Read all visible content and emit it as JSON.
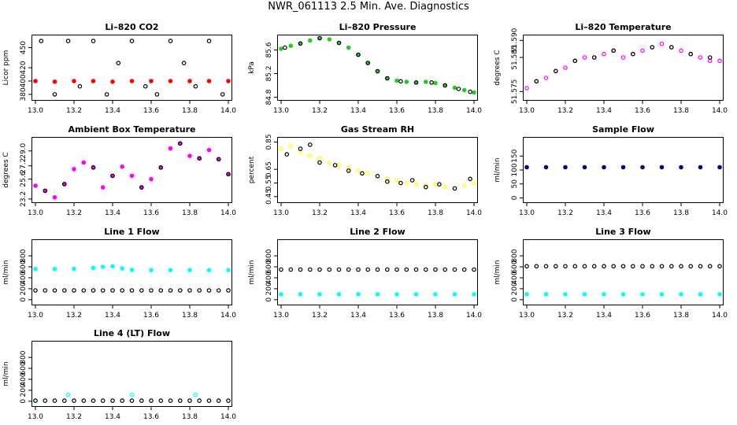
{
  "page_title": "NWR_061113  2.5 Min. Ave. Diagnostics",
  "x_axis": {
    "range": [
      13.0,
      14.0
    ],
    "ticks": [
      "13.0",
      "13.2",
      "13.4",
      "13.6",
      "13.8",
      "14.0"
    ]
  },
  "colors": {
    "black": "#000000",
    "red": "#ff0000",
    "green": "#22cc22",
    "magenta": "#ff00ff",
    "yellow": "#ffff00",
    "cyan": "#00ffff",
    "navy": "#000080"
  },
  "chart_data": [
    {
      "id": "li820-co2",
      "type": "scatter",
      "title": "Li–820 CO2",
      "ylabel": "Licor ppm",
      "ylim": [
        374,
        466
      ],
      "yticks": [
        "380",
        "400",
        "420",
        "450"
      ],
      "series": [
        {
          "name": "co2",
          "color": "red",
          "hollow": false,
          "x": [
            13.0,
            13.1,
            13.2,
            13.3,
            13.4,
            13.5,
            13.6,
            13.7,
            13.8,
            13.9,
            14.0
          ],
          "y": [
            400,
            399,
            400,
            400,
            399,
            400,
            400,
            400,
            400,
            400,
            400
          ]
        },
        {
          "name": "reference",
          "color": "black",
          "hollow": true,
          "x": [
            13.03,
            13.1,
            13.17,
            13.23,
            13.3,
            13.37,
            13.43,
            13.5,
            13.57,
            13.63,
            13.7,
            13.77,
            13.83,
            13.9,
            13.97
          ],
          "y": [
            460,
            380,
            460,
            392,
            460,
            380,
            427,
            460,
            392,
            380,
            460,
            427,
            392,
            460,
            380
          ]
        }
      ]
    },
    {
      "id": "li820-pressure",
      "type": "scatter",
      "title": "Li–820 Pressure",
      "ylabel": "kPa",
      "ylim": [
        84.78,
        85.82
      ],
      "yticks": [
        "84.8",
        "85.2",
        "85.6"
      ],
      "series": [
        {
          "name": "pressure",
          "color": "green",
          "hollow": false,
          "x": [
            13.0,
            13.05,
            13.1,
            13.15,
            13.2,
            13.25,
            13.3,
            13.35,
            13.4,
            13.45,
            13.5,
            13.55,
            13.6,
            13.65,
            13.7,
            13.75,
            13.8,
            13.85,
            13.9,
            13.95,
            14.0
          ],
          "y": [
            85.62,
            85.67,
            85.71,
            85.76,
            85.8,
            85.78,
            85.72,
            85.64,
            85.52,
            85.38,
            85.24,
            85.12,
            85.08,
            85.06,
            85.05,
            85.06,
            85.04,
            85.0,
            84.96,
            84.92,
            84.88
          ]
        },
        {
          "name": "pressure-ref",
          "color": "black",
          "hollow": true,
          "x": [
            13.02,
            13.1,
            13.2,
            13.3,
            13.4,
            13.45,
            13.5,
            13.55,
            13.62,
            13.7,
            13.78,
            13.85,
            13.92,
            13.98
          ],
          "y": [
            85.64,
            85.71,
            85.8,
            85.72,
            85.52,
            85.38,
            85.24,
            85.12,
            85.07,
            85.05,
            85.05,
            85.0,
            84.94,
            84.89
          ]
        }
      ]
    },
    {
      "id": "li820-temperature",
      "type": "scatter",
      "title": "Li–820 Temperature",
      "ylabel": "degrees C",
      "ylim": [
        51.573,
        51.591
      ],
      "yticks": [
        "51.575",
        "51.585",
        "51.590"
      ],
      "series": [
        {
          "name": "temperature",
          "color": "magenta",
          "hollow": true,
          "x": [
            13.0,
            13.05,
            13.1,
            13.15,
            13.2,
            13.25,
            13.3,
            13.35,
            13.4,
            13.45,
            13.5,
            13.55,
            13.6,
            13.65,
            13.7,
            13.75,
            13.8,
            13.85,
            13.9,
            13.95,
            14.0
          ],
          "y": [
            51.576,
            51.578,
            51.579,
            51.581,
            51.582,
            51.584,
            51.585,
            51.585,
            51.586,
            51.587,
            51.585,
            51.586,
            51.587,
            51.588,
            51.589,
            51.588,
            51.587,
            51.586,
            51.585,
            51.584,
            51.584
          ]
        },
        {
          "name": "temperature-ref",
          "color": "black",
          "hollow": true,
          "x": [
            13.05,
            13.15,
            13.25,
            13.35,
            13.45,
            13.55,
            13.65,
            13.75,
            13.85,
            13.95
          ],
          "y": [
            51.578,
            51.581,
            51.584,
            51.585,
            51.587,
            51.586,
            51.588,
            51.588,
            51.586,
            51.585
          ]
        }
      ]
    },
    {
      "id": "ambient-box-temperature",
      "type": "scatter",
      "title": "Ambient Box Temperature",
      "ylabel": "degrees C",
      "ylim": [
        23.0,
        30.4
      ],
      "yticks": [
        "23.2",
        "25.6",
        "27.2",
        "29.0"
      ],
      "series": [
        {
          "name": "box-temp",
          "color": "magenta",
          "hollow": false,
          "x": [
            13.0,
            13.05,
            13.1,
            13.15,
            13.2,
            13.25,
            13.3,
            13.35,
            13.4,
            13.45,
            13.5,
            13.55,
            13.6,
            13.65,
            13.7,
            13.75,
            13.8,
            13.85,
            13.9,
            13.95,
            14.0
          ],
          "y": [
            24.8,
            24.2,
            23.4,
            25.0,
            26.8,
            27.6,
            27.0,
            24.6,
            26.0,
            27.1,
            26.0,
            24.6,
            25.6,
            27.0,
            29.3,
            29.9,
            28.4,
            28.1,
            29.1,
            28.0,
            26.2
          ]
        },
        {
          "name": "box-temp-ref",
          "color": "black",
          "hollow": true,
          "x": [
            13.05,
            13.15,
            13.3,
            13.4,
            13.55,
            13.65,
            13.75,
            13.85,
            13.95,
            14.0
          ],
          "y": [
            24.2,
            25.0,
            27.0,
            26.0,
            24.6,
            27.0,
            29.9,
            28.1,
            28.0,
            26.2
          ]
        }
      ]
    },
    {
      "id": "gas-stream-rh",
      "type": "scatter",
      "title": "Gas Stream RH",
      "ylabel": "percent",
      "ylim": [
        0.42,
        0.87
      ],
      "yticks": [
        "0.45",
        "0.55",
        "0.65",
        "0.85"
      ],
      "series": [
        {
          "name": "rh",
          "color": "yellow",
          "hollow": true,
          "x": [
            13.0,
            13.05,
            13.1,
            13.15,
            13.2,
            13.25,
            13.3,
            13.35,
            13.4,
            13.45,
            13.5,
            13.55,
            13.6,
            13.65,
            13.7,
            13.75,
            13.8,
            13.85,
            13.9,
            13.95,
            14.0
          ],
          "y": [
            0.8,
            0.82,
            0.78,
            0.75,
            0.73,
            0.7,
            0.68,
            0.66,
            0.64,
            0.62,
            0.6,
            0.58,
            0.57,
            0.55,
            0.54,
            0.53,
            0.54,
            0.52,
            0.51,
            0.53,
            0.55
          ]
        },
        {
          "name": "rh-ref",
          "color": "black",
          "hollow": true,
          "x": [
            13.03,
            13.1,
            13.15,
            13.2,
            13.28,
            13.35,
            13.42,
            13.5,
            13.55,
            13.62,
            13.68,
            13.75,
            13.82,
            13.9,
            13.98
          ],
          "y": [
            0.76,
            0.8,
            0.83,
            0.7,
            0.68,
            0.64,
            0.62,
            0.6,
            0.56,
            0.55,
            0.57,
            0.52,
            0.54,
            0.51,
            0.58
          ]
        }
      ]
    },
    {
      "id": "sample-flow",
      "type": "scatter",
      "title": "Sample Flow",
      "ylabel": "ml/min",
      "ylim": [
        -10,
        210
      ],
      "yticks": [
        "0",
        "50",
        "100",
        "150"
      ],
      "series": [
        {
          "name": "sample",
          "color": "navy",
          "hollow": false,
          "x": [
            13.0,
            13.1,
            13.2,
            13.3,
            13.4,
            13.5,
            13.6,
            13.7,
            13.8,
            13.9,
            14.0
          ],
          "y": [
            110,
            110,
            110,
            110,
            110,
            110,
            110,
            110,
            110,
            110,
            110
          ]
        }
      ]
    },
    {
      "id": "line1-flow",
      "type": "scatter",
      "title": "Line 1 Flow",
      "ylabel": "ml/min",
      "ylim": [
        -60,
        1060
      ],
      "yticks": [
        "0",
        "200",
        "400",
        "600",
        "800"
      ],
      "series": [
        {
          "name": "line1",
          "color": "cyan",
          "hollow": false,
          "x": [
            13.0,
            13.1,
            13.2,
            13.3,
            13.35,
            13.4,
            13.45,
            13.5,
            13.6,
            13.7,
            13.8,
            13.9,
            14.0
          ],
          "y": [
            560,
            560,
            565,
            580,
            600,
            610,
            570,
            545,
            540,
            540,
            540,
            540,
            540
          ]
        },
        {
          "name": "line1-ref",
          "color": "black",
          "hollow": true,
          "x": [
            13.0,
            13.05,
            13.1,
            13.15,
            13.2,
            13.25,
            13.3,
            13.35,
            13.4,
            13.45,
            13.5,
            13.55,
            13.6,
            13.65,
            13.7,
            13.75,
            13.8,
            13.85,
            13.9,
            13.95,
            14.0
          ],
          "y": [
            170,
            170,
            170,
            170,
            170,
            170,
            170,
            170,
            170,
            170,
            170,
            170,
            170,
            170,
            170,
            170,
            170,
            170,
            170,
            170,
            170
          ]
        }
      ]
    },
    {
      "id": "line2-flow",
      "type": "scatter",
      "title": "Line 2 Flow",
      "ylabel": "ml/min",
      "ylim": [
        -60,
        1060
      ],
      "yticks": [
        "0",
        "200",
        "400",
        "600",
        "800"
      ],
      "series": [
        {
          "name": "line2",
          "color": "cyan",
          "hollow": false,
          "x": [
            13.0,
            13.1,
            13.2,
            13.3,
            13.4,
            13.5,
            13.6,
            13.7,
            13.8,
            13.9,
            14.0
          ],
          "y": [
            100,
            100,
            100,
            100,
            100,
            100,
            100,
            100,
            100,
            100,
            100
          ]
        },
        {
          "name": "line2-ref",
          "color": "black",
          "hollow": true,
          "x": [
            13.0,
            13.05,
            13.1,
            13.15,
            13.2,
            13.25,
            13.3,
            13.35,
            13.4,
            13.45,
            13.5,
            13.55,
            13.6,
            13.65,
            13.7,
            13.75,
            13.8,
            13.85,
            13.9,
            13.95,
            14.0
          ],
          "y": [
            550,
            550,
            550,
            550,
            550,
            550,
            550,
            550,
            550,
            550,
            550,
            550,
            550,
            550,
            550,
            550,
            550,
            550,
            550,
            550,
            550
          ]
        }
      ]
    },
    {
      "id": "line3-flow",
      "type": "scatter",
      "title": "Line 3 Flow",
      "ylabel": "ml/min",
      "ylim": [
        -60,
        1060
      ],
      "yticks": [
        "0",
        "200",
        "400",
        "600",
        "800"
      ],
      "series": [
        {
          "name": "line3",
          "color": "cyan",
          "hollow": false,
          "x": [
            13.0,
            13.1,
            13.2,
            13.3,
            13.4,
            13.5,
            13.6,
            13.7,
            13.8,
            13.9,
            14.0
          ],
          "y": [
            100,
            100,
            100,
            100,
            100,
            100,
            100,
            100,
            100,
            100,
            100
          ]
        },
        {
          "name": "line3-ref",
          "color": "black",
          "hollow": true,
          "x": [
            13.0,
            13.05,
            13.1,
            13.15,
            13.2,
            13.25,
            13.3,
            13.35,
            13.4,
            13.45,
            13.5,
            13.55,
            13.6,
            13.65,
            13.7,
            13.75,
            13.8,
            13.85,
            13.9,
            13.95,
            14.0
          ],
          "y": [
            610,
            610,
            610,
            610,
            610,
            610,
            610,
            610,
            610,
            610,
            610,
            610,
            610,
            610,
            610,
            610,
            610,
            610,
            610,
            610,
            610
          ]
        }
      ]
    },
    {
      "id": "line4-flow",
      "type": "scatter",
      "title": "Line 4 (LT) Flow",
      "ylabel": "ml/min",
      "ylim": [
        -60,
        1060
      ],
      "yticks": [
        "0",
        "200",
        "400",
        "600",
        "800"
      ],
      "series": [
        {
          "name": "line4",
          "color": "cyan",
          "hollow": true,
          "x": [
            13.0,
            13.17,
            13.5,
            13.83
          ],
          "y": [
            10,
            120,
            120,
            120
          ]
        },
        {
          "name": "line4-ref",
          "color": "black",
          "hollow": true,
          "x": [
            13.0,
            13.05,
            13.1,
            13.15,
            13.2,
            13.25,
            13.3,
            13.35,
            13.4,
            13.45,
            13.5,
            13.55,
            13.6,
            13.65,
            13.7,
            13.75,
            13.8,
            13.85,
            13.9,
            13.95,
            14.0
          ],
          "y": [
            10,
            10,
            10,
            10,
            10,
            10,
            10,
            10,
            10,
            10,
            10,
            10,
            10,
            10,
            10,
            10,
            10,
            10,
            10,
            10,
            10
          ]
        }
      ]
    }
  ]
}
